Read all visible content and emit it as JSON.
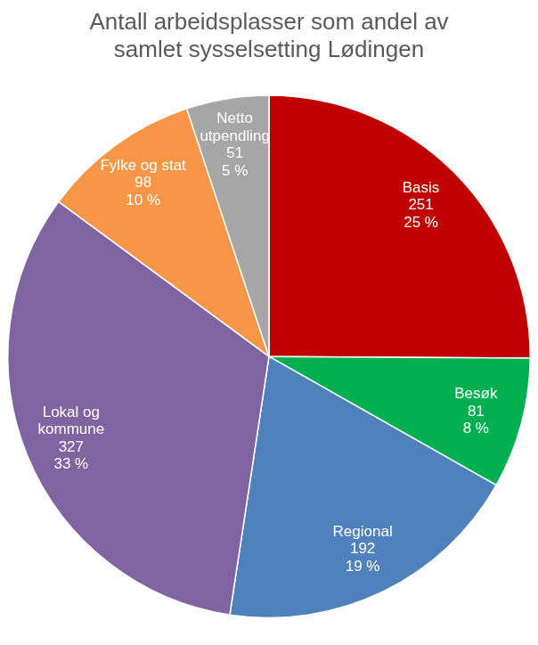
{
  "chart_data": {
    "type": "pie",
    "title": "Antall arbeidsplasser som andel av samlet sysselsetting Lødingen",
    "categories": [
      "Basis",
      "Besøk",
      "Regional",
      "Lokal og kommune",
      "Fylke og stat",
      "Netto utpendling"
    ],
    "values": [
      251,
      81,
      192,
      327,
      98,
      51
    ],
    "percent_labels": [
      "25 %",
      "8 %",
      "19 %",
      "33 %",
      "10 %",
      "5 %"
    ],
    "colors": [
      "#c00000",
      "#00b050",
      "#4f81bd",
      "#8064a2",
      "#f79646",
      "#a6a6a6"
    ],
    "data_labels": true,
    "legend": false
  }
}
